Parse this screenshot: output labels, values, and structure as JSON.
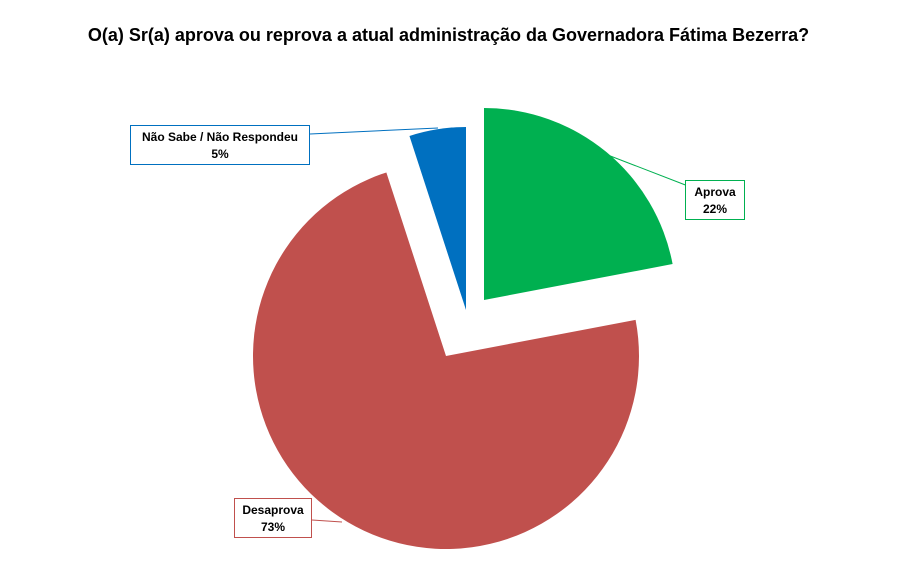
{
  "chart_data": {
    "type": "pie",
    "title": "O(a) Sr(a) aprova ou reprova a atual administração da Governadora Fátima Bezerra?",
    "slices": [
      {
        "label": "Aprova",
        "value": 22,
        "value_label": "22%",
        "color": "#00b050"
      },
      {
        "label": "Desaprova",
        "value": 73,
        "value_label": "73%",
        "color": "#c0504d"
      },
      {
        "label": "Não Sabe / Não Respondeu",
        "value": 5,
        "value_label": "5%",
        "color": "#0070c0"
      }
    ],
    "exploded": true,
    "legend": "none"
  }
}
